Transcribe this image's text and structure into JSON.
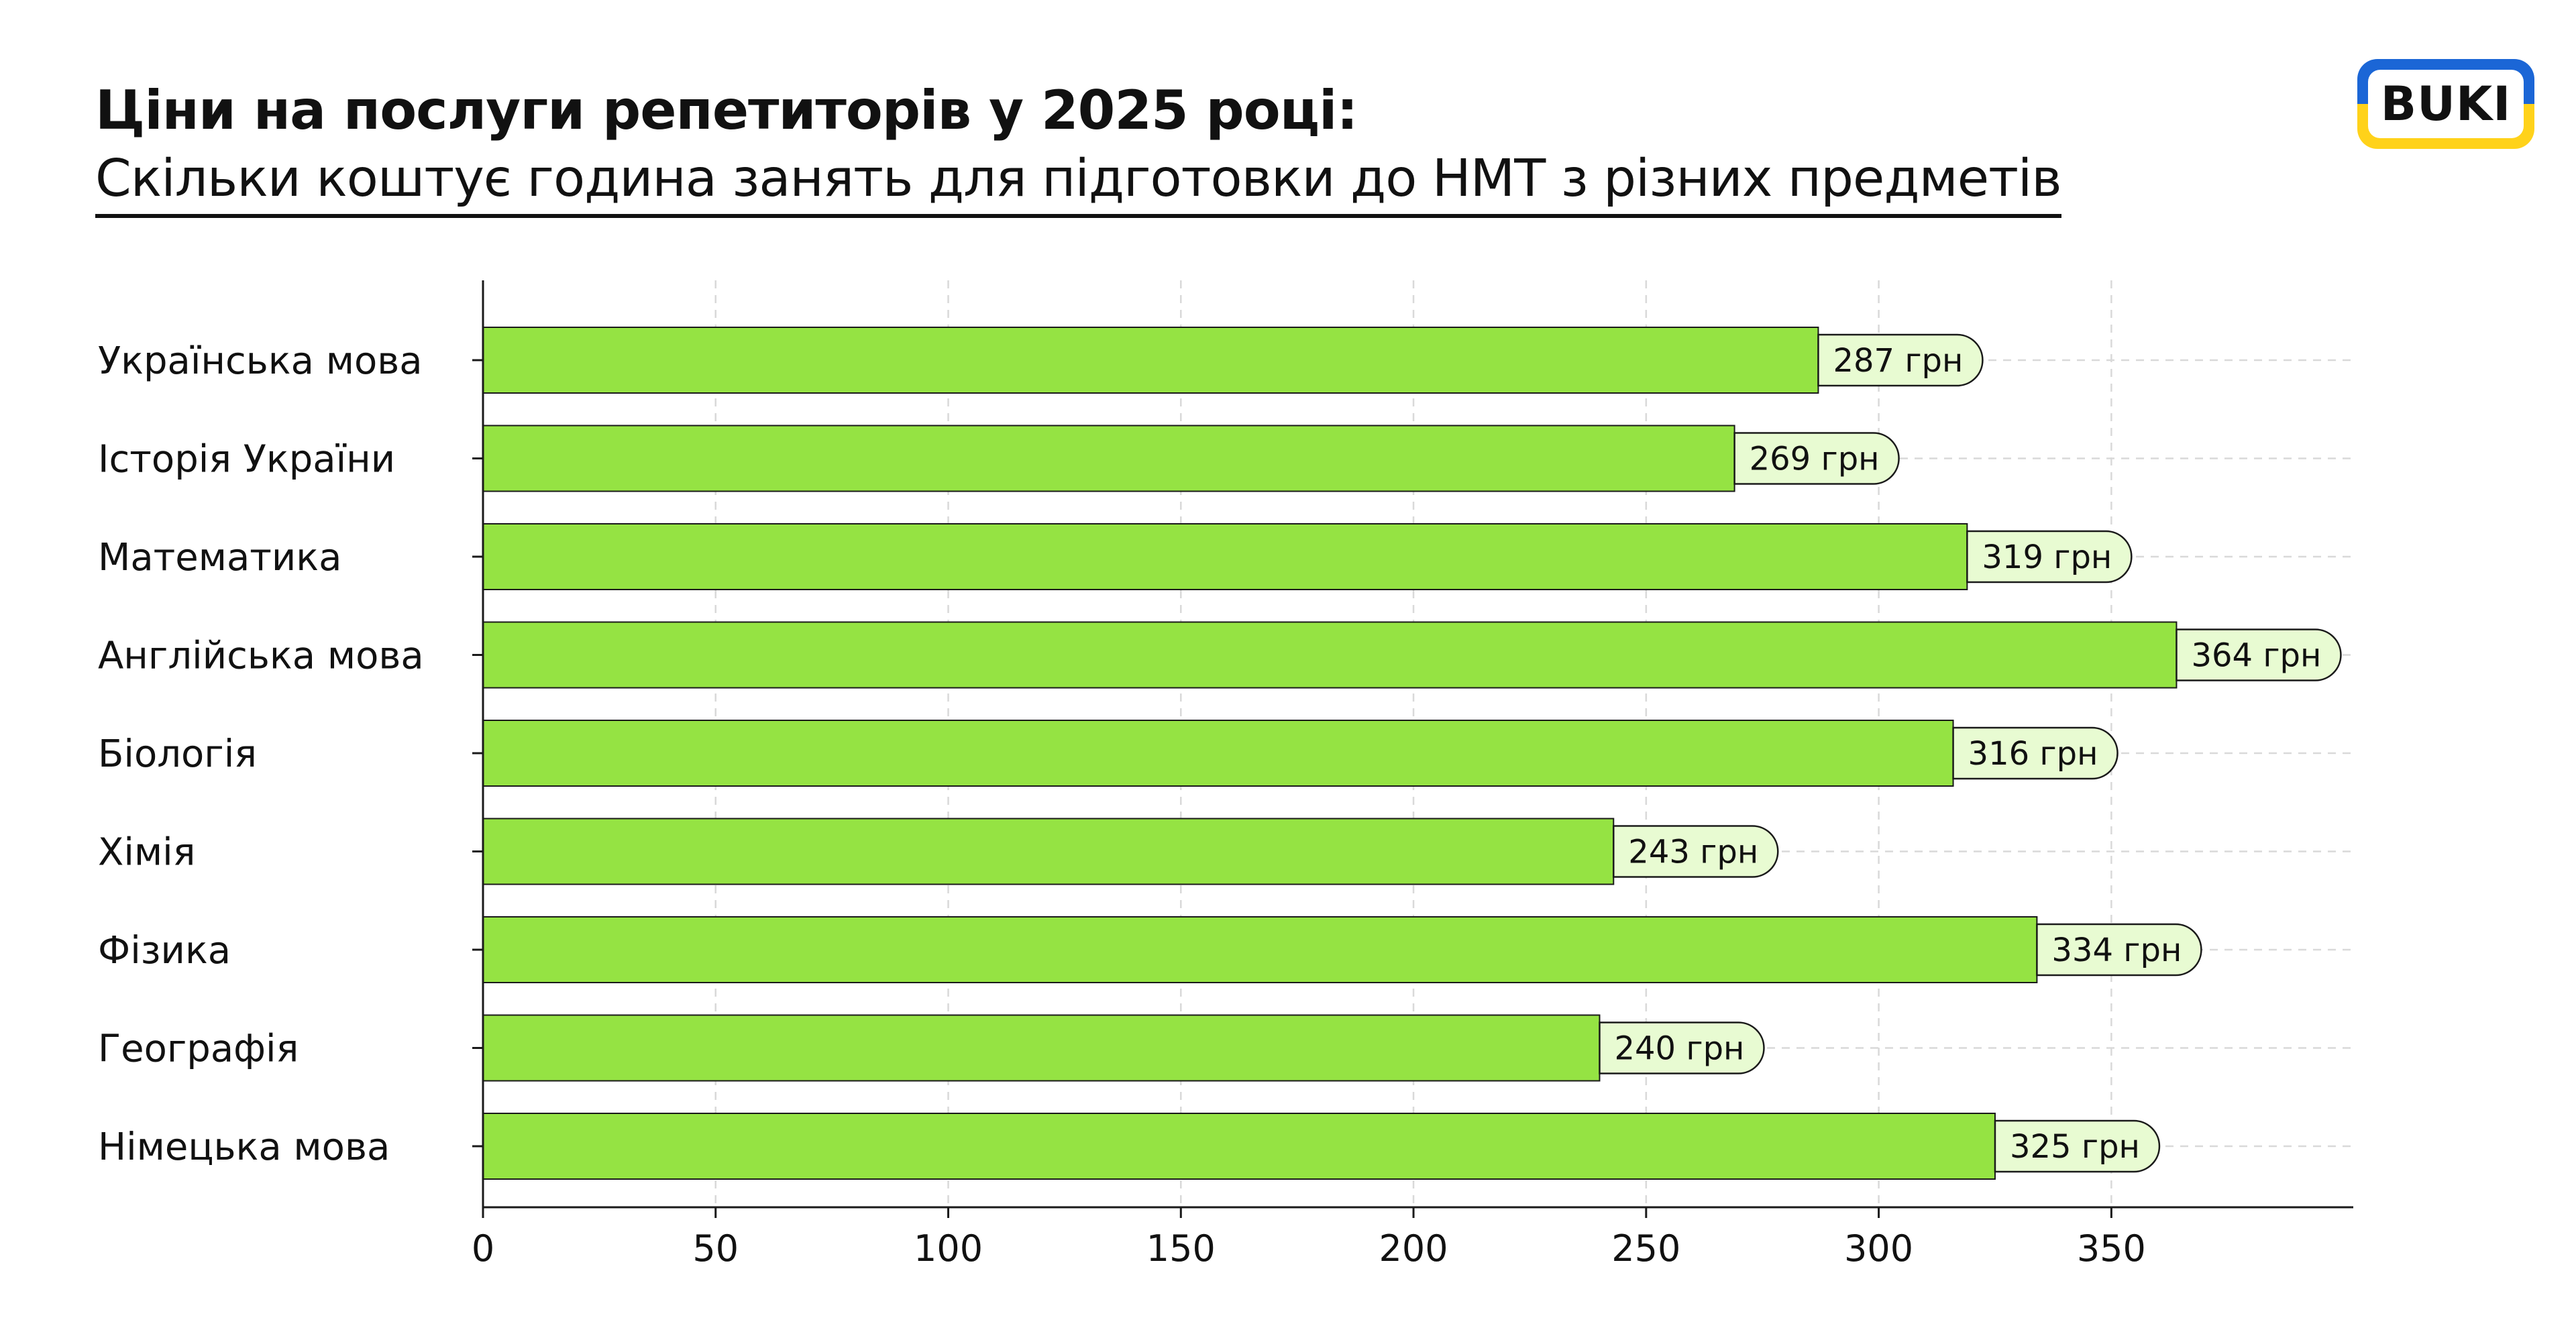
{
  "header": {
    "title": "Ціни на послуги репетиторів у 2025 році:",
    "subtitle": "Скільки коштує година занять для підготовки до НМТ з різних предметів"
  },
  "logo": {
    "text": "BUKI",
    "colors": {
      "top": "#1b66d6",
      "bottom": "#ffd21a"
    }
  },
  "chart_data": {
    "type": "bar",
    "orientation": "horizontal",
    "categories": [
      "Українська мова",
      "Історія України",
      "Математика",
      "Англійська мова",
      "Біологія",
      "Хімія",
      "Фізика",
      "Географія",
      "Німецька мова"
    ],
    "values": [
      287,
      269,
      319,
      364,
      316,
      243,
      334,
      240,
      325
    ],
    "value_labels": [
      "287 грн",
      "269 грн",
      "319 грн",
      "364 грн",
      "316 грн",
      "243 грн",
      "334 грн",
      "240 грн",
      "325 грн"
    ],
    "x_ticks": [
      0,
      50,
      100,
      150,
      200,
      250,
      300,
      350
    ],
    "xlim": [
      0,
      402
    ],
    "grid": true,
    "colors": {
      "bar": "#95e343",
      "label_bg": "#e8fbd2",
      "stroke": "#1a1a1a",
      "grid": "#d9d9d9"
    }
  }
}
